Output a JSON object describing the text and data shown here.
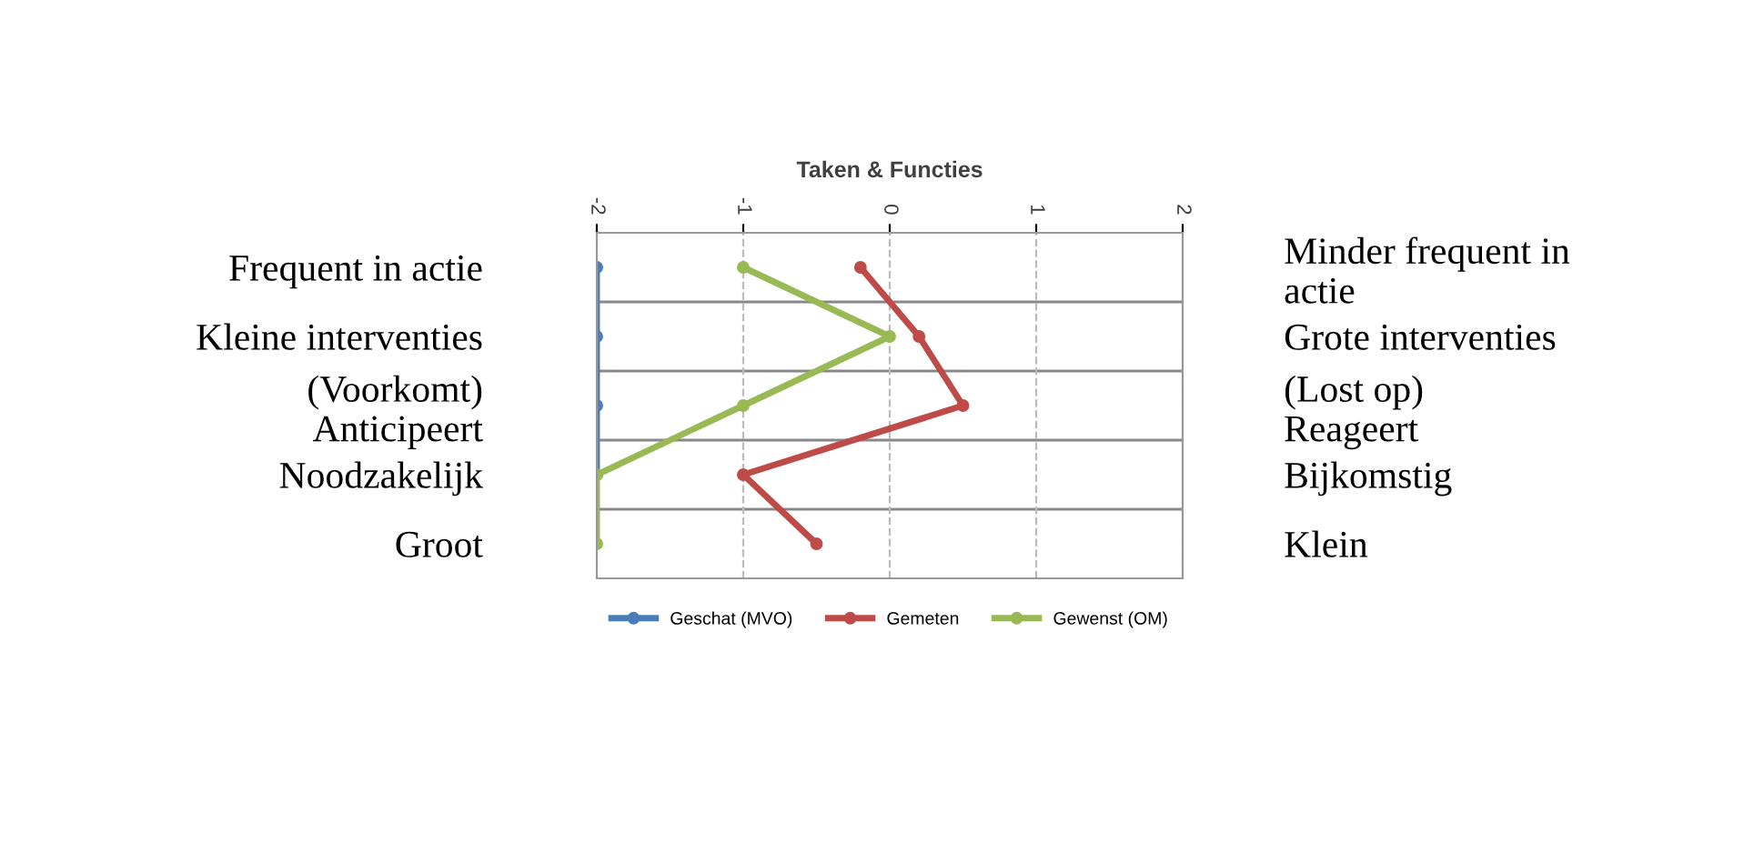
{
  "chart_data": {
    "type": "line",
    "orientation": "horizontal",
    "title": "Taken & Functies",
    "categories": [
      "Frequent in actie",
      "Kleine interventies",
      "(Voorkomt)\nAnticipeert",
      "Noodzakelijk",
      "Groot"
    ],
    "y2_categories": [
      "Minder frequent in\nactie",
      "Grote interventies",
      "(Lost op)\nReageert",
      "Bijkomstig",
      "Klein"
    ],
    "series": [
      {
        "name": "Geschat (MVO)",
        "color": "#4a7ebb",
        "values": [
          -2,
          -2,
          -2,
          -2,
          null
        ]
      },
      {
        "name": "Gemeten",
        "color": "#be4b48",
        "values": [
          -0.2,
          0.2,
          0.5,
          -1,
          -0.5
        ]
      },
      {
        "name": "Gewenst (OM)",
        "color": "#98b954",
        "values": [
          -1,
          0,
          -1,
          -2,
          -2
        ]
      }
    ],
    "xlim": [
      -2,
      2
    ],
    "xticks": [
      -2,
      -1,
      0,
      1,
      2
    ],
    "grid": true,
    "legend": "bottom",
    "marker": "circle",
    "line_style": "solid"
  }
}
